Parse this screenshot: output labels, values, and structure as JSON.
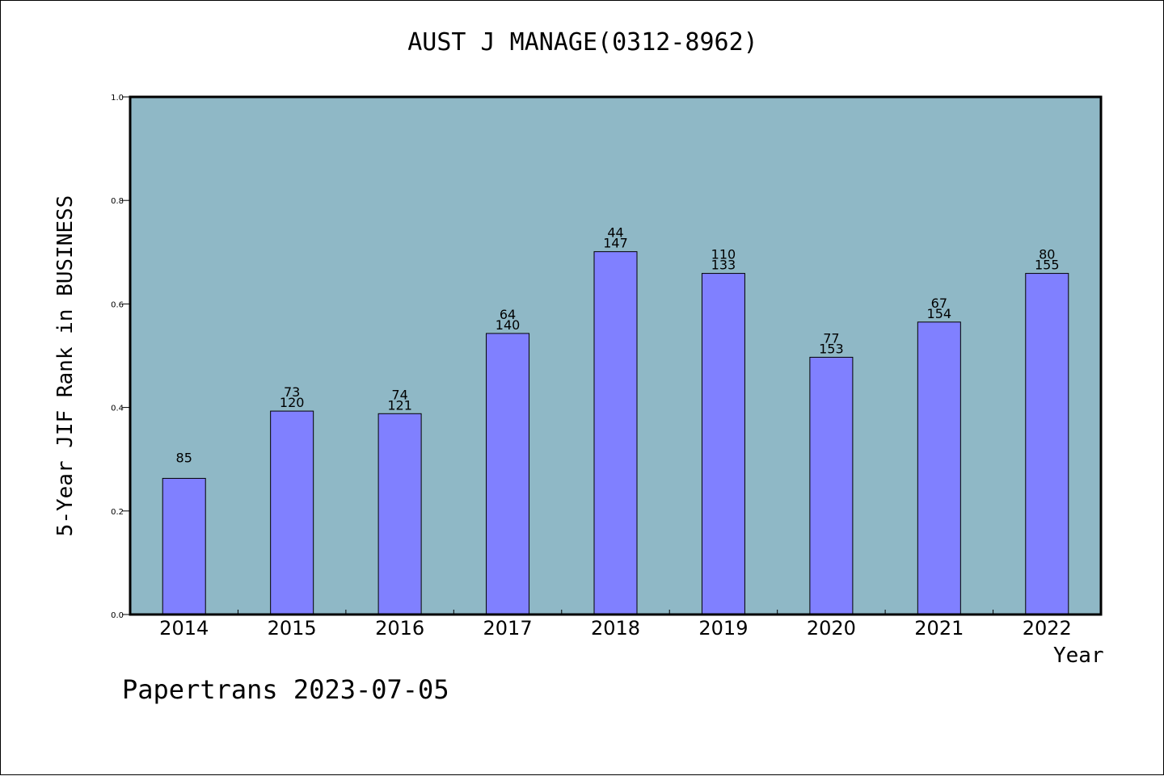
{
  "chart_data": {
    "type": "bar",
    "title": "AUST J MANAGE(0312-8962)",
    "xlabel": "Year",
    "ylabel": "5-Year JIF Rank in BUSINESS",
    "ylim": [
      0,
      1.0
    ],
    "yticks": [
      "0.0",
      "0.2",
      "0.4",
      "0.6",
      "0.8",
      "1.0"
    ],
    "grid": false,
    "categories": [
      "2014",
      "2015",
      "2016",
      "2017",
      "2018",
      "2019",
      "2020",
      "2021",
      "2022"
    ],
    "values": [
      0.263,
      0.393,
      0.388,
      0.543,
      0.701,
      0.659,
      0.497,
      0.565,
      0.659
    ],
    "labels_top": [
      "",
      "73",
      "74",
      "64",
      "44",
      "110",
      "77",
      "67",
      "80"
    ],
    "labels_bottom": [
      "85",
      "120",
      "121",
      "140",
      "147",
      "133",
      "153",
      "154",
      "155"
    ],
    "colors": {
      "plot_background": "#8fb8c6",
      "bar_fill": "#8080ff",
      "bar_stroke": "#000000"
    }
  },
  "footer": {
    "note": "Papertrans 2023-07-05"
  }
}
